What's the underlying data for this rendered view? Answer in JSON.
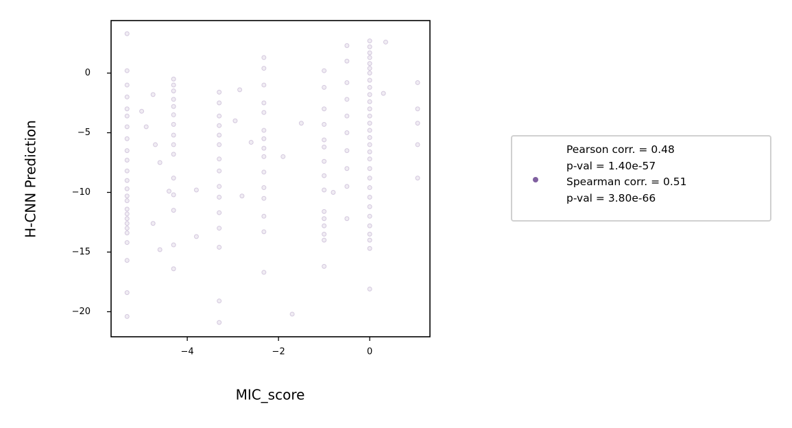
{
  "chart_data": {
    "type": "scatter",
    "xlabel": "MIC_score",
    "ylabel": "H-CNN Prediction",
    "xlim": [
      -5.67,
      1.32
    ],
    "ylim": [
      -22.1,
      4.4
    ],
    "xticks": [
      {
        "value": -4,
        "label": "−4"
      },
      {
        "value": -2,
        "label": "−2"
      },
      0
    ],
    "yticks": [
      0,
      {
        "value": -5,
        "label": "−5"
      },
      {
        "value": -10,
        "label": "−10"
      },
      {
        "value": -15,
        "label": "−15"
      },
      {
        "value": -20,
        "label": "−20"
      }
    ],
    "x": [
      -5.32,
      -5.32,
      -5.32,
      -5.32,
      -5.32,
      -5.32,
      -5.32,
      -5.32,
      -5.32,
      -5.32,
      -5.32,
      -5.32,
      -5.32,
      -5.32,
      -5.32,
      -5.32,
      -5.32,
      -5.32,
      -5.32,
      -5.32,
      -5.32,
      -5.32,
      -5.32,
      -5.32,
      -5.32,
      -4.3,
      -4.3,
      -4.3,
      -4.3,
      -4.3,
      -4.3,
      -4.3,
      -4.3,
      -4.3,
      -4.3,
      -4.3,
      -4.3,
      -4.3,
      -4.3,
      -4.3,
      -3.3,
      -3.3,
      -3.3,
      -3.3,
      -3.3,
      -3.3,
      -3.3,
      -3.3,
      -3.3,
      -3.3,
      -3.3,
      -3.3,
      -3.3,
      -3.3,
      -3.3,
      -2.32,
      -2.32,
      -2.32,
      -2.32,
      -2.32,
      -2.32,
      -2.32,
      -2.32,
      -2.32,
      -2.32,
      -2.32,
      -2.32,
      -2.32,
      -2.32,
      -2.32,
      -1.0,
      -1.0,
      -1.0,
      -1.0,
      -1.0,
      -1.0,
      -1.0,
      -1.0,
      -1.0,
      -1.0,
      -1.0,
      -1.0,
      -1.0,
      -1.0,
      -1.0,
      -0.5,
      -0.5,
      -0.5,
      -0.5,
      -0.5,
      -0.5,
      -0.5,
      -0.5,
      -0.5,
      -0.5,
      0,
      0,
      0,
      0,
      0,
      0,
      0,
      0,
      0,
      0,
      0,
      0,
      0,
      0,
      0,
      0,
      0,
      0,
      0,
      0,
      0,
      0,
      0,
      0,
      0,
      0,
      0,
      0,
      0,
      0,
      1.05,
      1.05,
      1.05,
      1.05,
      1.05,
      -5,
      -4.9,
      -4.75,
      -4.7,
      -4.6,
      -4.4,
      -4.75,
      -4.6,
      -3.8,
      -3.8,
      -2.95,
      -2.85,
      -2.6,
      -2.8,
      -1.9,
      -1.7,
      -1.5,
      -0.8,
      0.3,
      0.35
    ],
    "series": [
      {
        "name": "Pearson corr. = 0.48\np-val = 1.40e-57\nSpearman corr. = 0.51\np-val = 3.80e-66",
        "color": "#8060a0",
        "values": [
          3.3,
          0.2,
          -1,
          -2,
          -3,
          -3.6,
          -4.5,
          -5.5,
          -6.5,
          -7.3,
          -8.2,
          -9,
          -9.7,
          -10.3,
          -10.7,
          -11.4,
          -11.8,
          -12.2,
          -12.6,
          -13,
          -13.4,
          -14.2,
          -15.7,
          -18.4,
          -20.4,
          -0.5,
          -1,
          -1.5,
          -2.2,
          -2.8,
          -3.5,
          -4.3,
          -5.2,
          -6,
          -6.8,
          -8.8,
          -10.2,
          -11.5,
          -14.4,
          -16.4,
          -1.6,
          -2.5,
          -3.6,
          -4.4,
          -5.2,
          -6,
          -7.2,
          -8.2,
          -9.5,
          -10.4,
          -11.7,
          -13,
          -14.6,
          -19.1,
          -20.9,
          1.3,
          0.4,
          -1,
          -2.5,
          -3.3,
          -4.8,
          -5.5,
          -6.3,
          -7,
          -8.3,
          -9.6,
          -10.5,
          -12,
          -13.3,
          -16.7,
          0.2,
          -1.2,
          -3,
          -4.3,
          -5.6,
          -6.2,
          -7.4,
          -8.6,
          -9.8,
          -11.6,
          -12.2,
          -12.8,
          -13.5,
          -14,
          -16.2,
          2.3,
          1,
          -0.8,
          -2.2,
          -3.6,
          -5,
          -6.5,
          -8,
          -9.5,
          -12.2,
          2.7,
          2.2,
          1.7,
          1.3,
          0.8,
          0.4,
          0,
          -0.6,
          -1.2,
          -1.8,
          -2.4,
          -3,
          -3.6,
          -4.2,
          -4.8,
          -5.4,
          -6,
          -6.6,
          -7.2,
          -8,
          -8.8,
          -9.6,
          -10.4,
          -11.2,
          -12,
          -12.8,
          -13.5,
          -14,
          -14.7,
          -18.1,
          -0.8,
          -3,
          -4.2,
          -6,
          -8.8,
          -3.2,
          -4.5,
          -1.8,
          -6,
          -7.5,
          -9.9,
          -12.6,
          -14.8,
          -9.8,
          -13.7,
          -4,
          -1.4,
          -5.8,
          -10.3,
          -7,
          -20.2,
          -4.2,
          -10,
          -1.7,
          2.6
        ]
      }
    ]
  }
}
